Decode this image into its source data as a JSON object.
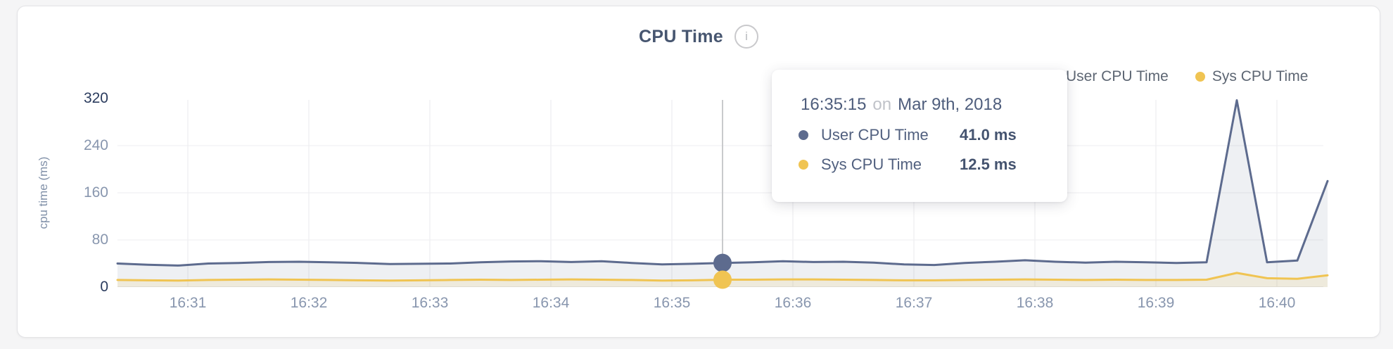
{
  "header": {
    "title": "CPU Time",
    "info_glyph": "i"
  },
  "legend": {
    "items": [
      {
        "label": "User CPU Time",
        "color": "#5d6b8e"
      },
      {
        "label": "Sys CPU Time",
        "color": "#f0c452"
      }
    ]
  },
  "tooltip": {
    "time": "16:35:15",
    "preposition": "on",
    "date": "Mar 9th, 2018",
    "rows": [
      {
        "label": "User CPU Time",
        "value": "41.0 ms",
        "color": "#5d6b8e"
      },
      {
        "label": "Sys CPU Time",
        "value": "12.5 ms",
        "color": "#f0c452"
      }
    ]
  },
  "chart_data": {
    "type": "line",
    "title": "CPU Time",
    "xlabel": "",
    "ylabel": "cpu time (ms)",
    "ylim": [
      0,
      320
    ],
    "y_ticks": [
      0,
      80,
      160,
      240,
      320
    ],
    "y_ticks_strong": [
      0,
      320
    ],
    "x_ticks": [
      "16:31",
      "16:32",
      "16:33",
      "16:34",
      "16:35",
      "16:36",
      "16:37",
      "16:38",
      "16:39",
      "16:40"
    ],
    "grid": "on",
    "legend_position": "top-right",
    "x": [
      "16:30:15",
      "16:30:30",
      "16:30:45",
      "16:31:00",
      "16:31:15",
      "16:31:30",
      "16:31:45",
      "16:32:00",
      "16:32:15",
      "16:32:30",
      "16:32:45",
      "16:33:00",
      "16:33:15",
      "16:33:30",
      "16:33:45",
      "16:34:00",
      "16:34:15",
      "16:34:30",
      "16:34:45",
      "16:35:00",
      "16:35:15",
      "16:35:30",
      "16:35:45",
      "16:36:00",
      "16:36:15",
      "16:36:30",
      "16:36:45",
      "16:37:00",
      "16:37:15",
      "16:37:30",
      "16:37:45",
      "16:38:00",
      "16:38:15",
      "16:38:30",
      "16:38:45",
      "16:39:00",
      "16:39:15",
      "16:39:30",
      "16:39:45",
      "16:40:00",
      "16:40:15"
    ],
    "series": [
      {
        "name": "User CPU Time",
        "color": "#5d6b8e",
        "fill": "rgba(93,107,142,0.10)",
        "values": [
          40,
          38,
          36.5,
          40,
          41,
          42.5,
          43,
          42,
          41,
          39,
          39.5,
          40,
          42,
          43.5,
          44,
          42.5,
          44,
          41,
          38.5,
          39.5,
          41,
          42,
          44,
          42.5,
          43,
          41.5,
          38.5,
          37.5,
          41,
          43,
          45.5,
          43,
          41.5,
          43,
          42,
          41,
          42,
          317,
          42,
          45,
          180
        ]
      },
      {
        "name": "Sys CPU Time",
        "color": "#f0c452",
        "fill": "rgba(238,196,86,0.14)",
        "values": [
          12,
          11.5,
          11,
          12,
          12.5,
          13,
          12.5,
          12,
          11.5,
          11,
          11.5,
          12,
          12.5,
          12,
          12.5,
          13,
          12.5,
          12,
          11,
          11.5,
          12.5,
          12.5,
          13,
          13,
          12.5,
          12,
          11.5,
          11.5,
          12,
          12.5,
          13,
          12.5,
          12,
          12.5,
          12,
          12,
          12.5,
          24,
          15,
          14,
          20
        ]
      }
    ],
    "hover": {
      "time": "16:35:15",
      "index": 20,
      "values": {
        "user": 41.0,
        "sys": 12.5
      }
    }
  }
}
